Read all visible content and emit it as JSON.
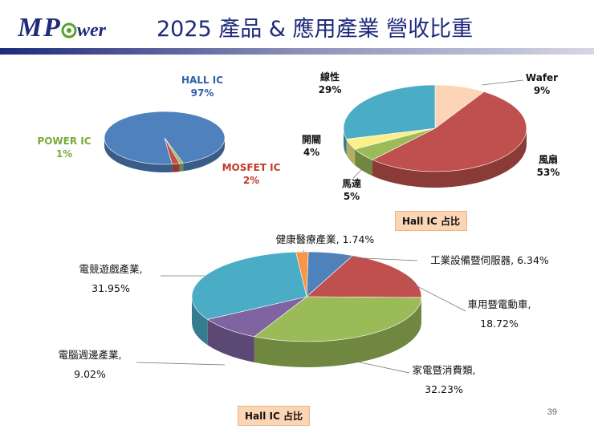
{
  "header": {
    "logo_text": "MPower",
    "title": "2025 產品 & 應用產業 營收比重"
  },
  "colors": {
    "title": "#1f2a7a",
    "logo_blue": "#1f2a7a",
    "logo_green": "#5aa02c",
    "bar_start": "#1f2a7a",
    "bar_end": "#c8c8d8",
    "badge_bg": "#fcd5b5"
  },
  "chart_data": [
    {
      "type": "pie",
      "title": "",
      "legend": "none",
      "labels": [
        {
          "name": "HALL IC",
          "pct": "97%",
          "color": "#2e5fa8"
        },
        {
          "name": "POWER IC",
          "pct": "1%",
          "color": "#7caa3c"
        },
        {
          "name": "MOSFET IC",
          "pct": "2%",
          "color": "#c0392b"
        }
      ],
      "slices": [
        {
          "label": "HALL IC",
          "value": 97,
          "color": "#4f81bd"
        },
        {
          "label": "POWER IC",
          "value": 1,
          "color": "#9bbb59"
        },
        {
          "label": "MOSFET IC",
          "value": 2,
          "color": "#c0504d"
        }
      ]
    },
    {
      "type": "pie",
      "title": "Hall IC 占比",
      "legend": "none",
      "labels": [
        {
          "name": "Wafer",
          "pct": "9%"
        },
        {
          "name": "風扇",
          "pct": "53%"
        },
        {
          "name": "馬達",
          "pct": "5%"
        },
        {
          "name": "開關",
          "pct": "4%"
        },
        {
          "name": "線性",
          "pct": "29%"
        }
      ],
      "slices": [
        {
          "label": "Wafer",
          "value": 9,
          "color": "#fbd5b5"
        },
        {
          "label": "風扇",
          "value": 53,
          "color": "#c0504d"
        },
        {
          "label": "馬達",
          "value": 5,
          "color": "#9bbb59"
        },
        {
          "label": "開關",
          "value": 4,
          "color": "#fbf08a"
        },
        {
          "label": "線性",
          "value": 29,
          "color": "#4bacc6"
        }
      ]
    },
    {
      "type": "pie",
      "title": "Hall IC 占比",
      "legend": "none",
      "labels": [
        {
          "name": "健康醫療產業,",
          "pct": "1.74%"
        },
        {
          "name": "工業設備暨伺服器,",
          "pct": "6.34%"
        },
        {
          "name": "車用暨電動車,",
          "pct": "18.72%"
        },
        {
          "name": "家電暨消費類,",
          "pct": "32.23%"
        },
        {
          "name": "電腦週邊產業,",
          "pct": "9.02%"
        },
        {
          "name": "電競遊戲產業,",
          "pct": "31.95%"
        }
      ],
      "slices": [
        {
          "label": "健康醫療產業",
          "value": 1.74,
          "color": "#f79646"
        },
        {
          "label": "工業設備暨伺服器",
          "value": 6.34,
          "color": "#4f81bd"
        },
        {
          "label": "車用暨電動車",
          "value": 18.72,
          "color": "#c0504d"
        },
        {
          "label": "家電暨消費類",
          "value": 32.23,
          "color": "#9bbb59"
        },
        {
          "label": "電腦週邊產業",
          "value": 9.02,
          "color": "#8064a2"
        },
        {
          "label": "電競遊戲產業",
          "value": 31.95,
          "color": "#4bacc6"
        }
      ]
    }
  ],
  "badges": {
    "top": "Hall IC 占比",
    "bottom": "Hall IC 占比"
  },
  "footer": {
    "page_number": "39"
  }
}
